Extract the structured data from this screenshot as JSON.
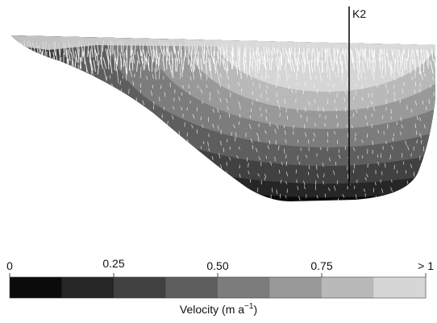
{
  "profile_label": "K2",
  "colorbar": {
    "tick_labels": [
      "0",
      "0.25",
      "0.50",
      "0.75",
      "> 1"
    ],
    "title_main": "Velocity (m a",
    "title_sup": "−1",
    "title_end": ")",
    "bin_colors": [
      "#0b0b0b",
      "#262626",
      "#414141",
      "#5e5e5e",
      "#7c7c7c",
      "#999999",
      "#b9b9b9",
      "#d6d6d6"
    ]
  },
  "colors": {
    "surface_fill": "#cfcfcf",
    "velocity_vectors": "#ffffff",
    "profile_line": "#000000"
  }
}
